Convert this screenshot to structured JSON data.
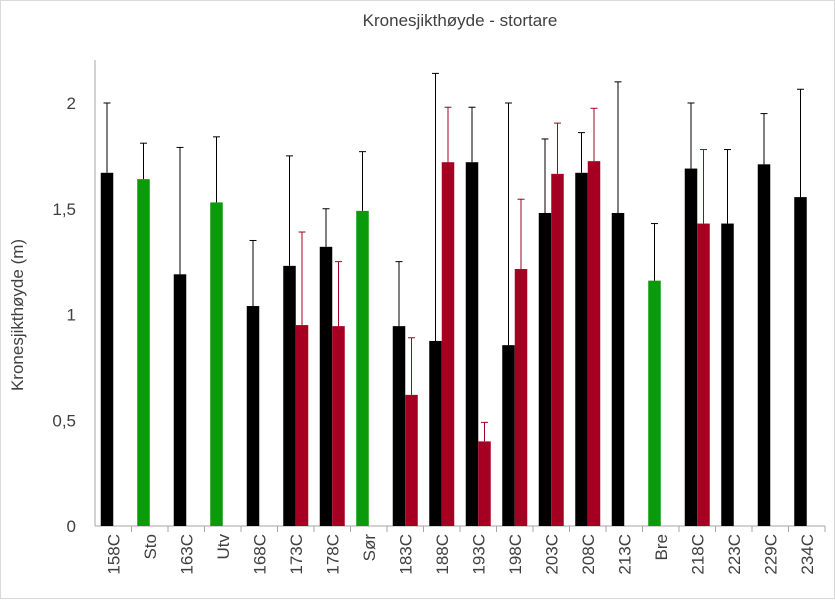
{
  "chart_data": {
    "type": "bar",
    "title": "Kronesjikthøyde - stortare",
    "xlabel": "",
    "ylabel": "Kronesjikthøyde (m)",
    "ylim": [
      0,
      2.2
    ],
    "yticks": [
      0,
      0.5,
      1,
      1.5,
      2
    ],
    "ytick_labels": [
      "0",
      "0,5",
      "1",
      "1,5",
      "2"
    ],
    "grid": false,
    "categories": [
      "158C",
      "Sto",
      "163C",
      "Utv",
      "168C",
      "173C",
      "178C",
      "Sør",
      "183C",
      "188C",
      "193C",
      "198C",
      "203C",
      "208C",
      "213C",
      "Bre",
      "218C",
      "223C",
      "229C",
      "234C"
    ],
    "series": [
      {
        "name": "primary",
        "values": [
          1.67,
          1.64,
          1.19,
          1.53,
          1.04,
          1.23,
          1.32,
          1.49,
          0.945,
          0.875,
          1.72,
          0.855,
          1.48,
          1.67,
          1.48,
          1.16,
          1.69,
          1.43,
          1.71,
          1.555
        ],
        "error_top": [
          2.0,
          1.81,
          1.79,
          1.84,
          1.35,
          1.75,
          1.5,
          1.77,
          1.25,
          2.14,
          1.98,
          2.0,
          1.83,
          1.86,
          2.1,
          1.43,
          2.0,
          1.78,
          1.95,
          2.065
        ],
        "colors": [
          "black",
          "green",
          "black",
          "green",
          "black",
          "black",
          "black",
          "green",
          "black",
          "black",
          "black",
          "black",
          "black",
          "black",
          "black",
          "green",
          "black",
          "black",
          "black",
          "black"
        ]
      },
      {
        "name": "secondary",
        "values": [
          null,
          null,
          null,
          null,
          null,
          0.95,
          0.945,
          null,
          0.62,
          1.72,
          0.4,
          1.215,
          1.665,
          1.725,
          null,
          null,
          1.43,
          null,
          null,
          null
        ],
        "error_top": [
          null,
          null,
          null,
          null,
          null,
          1.39,
          1.25,
          null,
          0.89,
          1.98,
          0.49,
          1.545,
          1.905,
          1.975,
          null,
          null,
          1.78,
          null,
          null,
          null
        ],
        "color": "red"
      }
    ],
    "palette": {
      "black": "#000000",
      "green": "#0a9a0a",
      "red": "#a50021",
      "axis": "#a6a6a6"
    }
  }
}
